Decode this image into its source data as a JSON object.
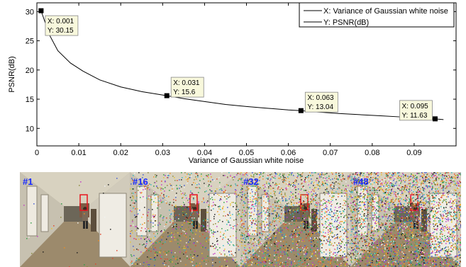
{
  "chart_data": {
    "type": "line",
    "title": "",
    "xlabel": "Variance of Gaussian white noise",
    "ylabel": "PSNR(dB)",
    "xlim": [
      0,
      0.1
    ],
    "ylim": [
      7,
      31.5
    ],
    "xticks": [
      0,
      0.01,
      0.02,
      0.03,
      0.04,
      0.05,
      0.06,
      0.07,
      0.08,
      0.09
    ],
    "xtick_labels": [
      "0",
      "0.01",
      "0.02",
      "0.03",
      "0.04",
      "0.05",
      "0.06",
      "0.07",
      "0.08",
      "0.09"
    ],
    "yticks": [
      10,
      15,
      20,
      25,
      30
    ],
    "ytick_labels": [
      "10",
      "15",
      "20",
      "25",
      "30"
    ],
    "grid": false,
    "legend_position": "top-right",
    "legend": [
      "X: Variance of Gaussian white noise",
      "Y: PSNR(dB)"
    ],
    "series": [
      {
        "x": [
          0.001,
          0.003,
          0.005,
          0.008,
          0.011,
          0.015,
          0.02,
          0.025,
          0.031,
          0.035,
          0.04,
          0.045,
          0.05,
          0.055,
          0.06,
          0.063,
          0.067,
          0.072,
          0.077,
          0.082,
          0.087,
          0.091,
          0.095,
          0.097
        ],
        "y": [
          30.15,
          26.0,
          23.3,
          21.2,
          19.8,
          18.3,
          17.1,
          16.3,
          15.6,
          15.1,
          14.6,
          14.1,
          13.75,
          13.45,
          13.15,
          13.04,
          12.8,
          12.55,
          12.35,
          12.15,
          11.95,
          11.8,
          11.63,
          11.5
        ]
      }
    ],
    "datatips": [
      {
        "x": 0.001,
        "y": 30.15,
        "x_label": "X: 0.001",
        "y_label": "Y: 30.15"
      },
      {
        "x": 0.031,
        "y": 15.6,
        "x_label": "X: 0.031",
        "y_label": "Y: 15.6"
      },
      {
        "x": 0.063,
        "y": 13.04,
        "x_label": "X: 0.063",
        "y_label": "Y: 13.04"
      },
      {
        "x": 0.095,
        "y": 11.63,
        "x_label": "X: 0.095",
        "y_label": "Y: 11.63"
      }
    ]
  },
  "frames": [
    {
      "label": "#1",
      "noise": 0.001
    },
    {
      "label": "#16",
      "noise": 0.031
    },
    {
      "label": "#32",
      "noise": 0.063
    },
    {
      "label": "#48",
      "noise": 0.095
    }
  ],
  "colors": {
    "line": "#000000",
    "datatip_fill": "#f8f8dc",
    "frame_label": "#1a2bff",
    "roi_box": "#e8141e"
  }
}
